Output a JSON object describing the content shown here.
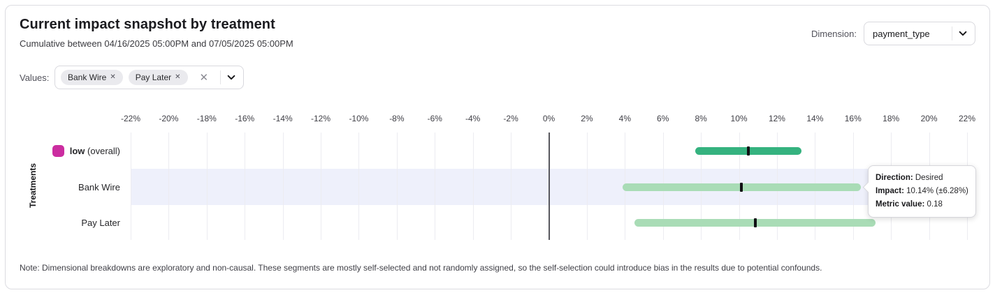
{
  "header": {
    "title": "Current impact snapshot by treatment",
    "subtitle": "Cumulative between 04/16/2025 05:00PM and 07/05/2025 05:00PM",
    "dimension_label": "Dimension:",
    "dimension_value": "payment_type"
  },
  "values_control": {
    "label": "Values:",
    "chips": [
      {
        "label": "Bank Wire",
        "remove_icon": "✕"
      },
      {
        "label": "Pay Later",
        "remove_icon": "✕"
      }
    ],
    "clear_icon": "✕"
  },
  "chart_data": {
    "type": "bar",
    "variant": "horizontal-interval",
    "ylabel": "Treatments",
    "xlim": [
      -22,
      22
    ],
    "xticks": [
      -22,
      -20,
      -18,
      -16,
      -14,
      -12,
      -10,
      -8,
      -6,
      -4,
      -2,
      0,
      2,
      4,
      6,
      8,
      10,
      12,
      14,
      16,
      18,
      20,
      22
    ],
    "x_tick_suffix": "%",
    "grid": true,
    "zero_line": 0,
    "colors": {
      "overall_bar": "#35b27f",
      "segment_bar": "#a9dcb6",
      "center_tick": "#101014",
      "legend_magenta": "#cb2da0",
      "row_highlight": "#eef0fb"
    },
    "rows": [
      {
        "label": "low",
        "label_suffix": "(overall)",
        "label_bold": true,
        "has_legend_swatch": true,
        "low": 7.7,
        "center": 10.5,
        "high": 13.3,
        "bar": "overall_bar",
        "highlighted": false
      },
      {
        "label": "Bank Wire",
        "label_suffix": "",
        "label_bold": false,
        "has_legend_swatch": false,
        "low": 3.86,
        "center": 10.14,
        "high": 16.42,
        "bar": "segment_bar",
        "highlighted": true
      },
      {
        "label": "Pay Later",
        "label_suffix": "",
        "label_bold": false,
        "has_legend_swatch": false,
        "low": 4.5,
        "center": 10.85,
        "high": 17.2,
        "bar": "segment_bar",
        "highlighted": false
      }
    ]
  },
  "tooltip": {
    "direction_label": "Direction:",
    "direction_value": "Desired",
    "impact_label": "Impact:",
    "impact_value": "10.14% (±6.28%)",
    "metric_label": "Metric value:",
    "metric_value": "0.18"
  },
  "note": "Note: Dimensional breakdowns are exploratory and non-causal. These segments are mostly self-selected and not randomly assigned, so the self-selection could introduce bias in the results due to potential confounds."
}
